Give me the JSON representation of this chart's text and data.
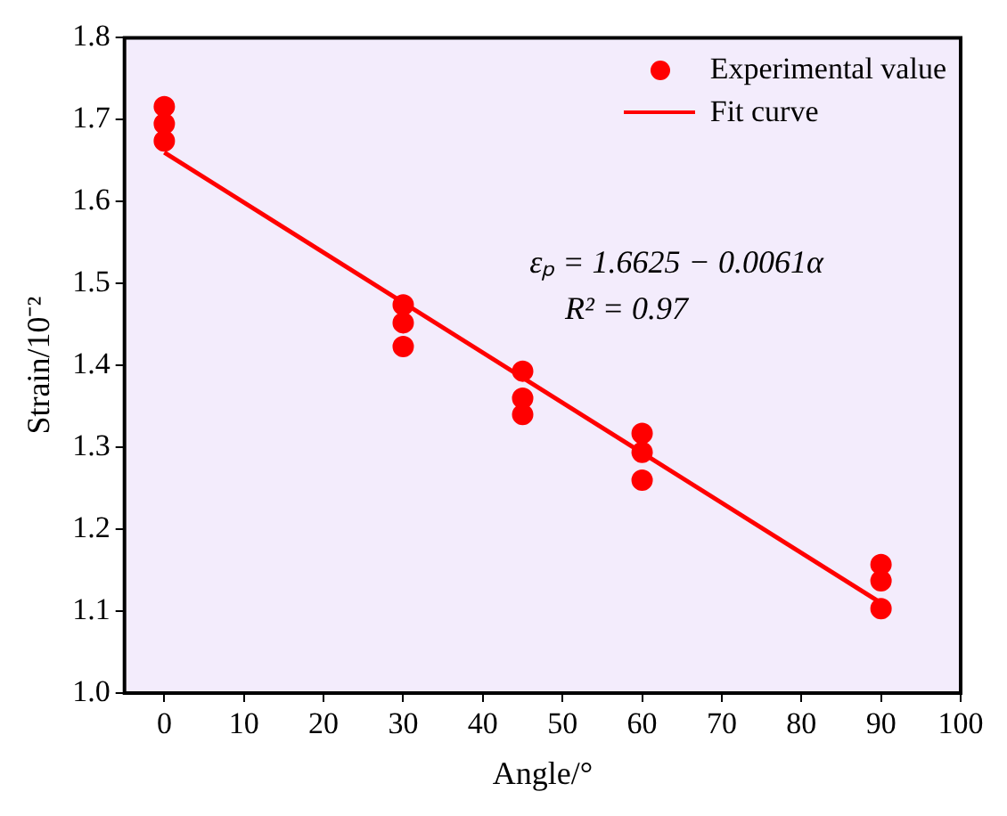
{
  "chart_data": {
    "type": "scatter",
    "xlabel": "Angle/°",
    "ylabel": "Strain/10⁻²",
    "xlim": [
      -5,
      100
    ],
    "xticks": [
      0,
      10,
      20,
      30,
      40,
      50,
      60,
      70,
      80,
      90,
      100
    ],
    "ylim": [
      1.0,
      1.8
    ],
    "yticks": [
      {
        "value": 1,
        "label": "1.0"
      },
      1.1,
      1.2,
      1.3,
      1.4,
      1.5,
      1.6,
      1.7,
      1.8
    ],
    "series": [
      {
        "name": "Experimental value",
        "type": "scatter",
        "color": "#ff0000",
        "marker": "circle",
        "x": [
          0,
          0,
          0,
          30,
          30,
          30,
          45,
          45,
          45,
          60,
          60,
          60,
          90,
          90,
          90
        ],
        "values": [
          1.716,
          1.695,
          1.674,
          1.474,
          1.452,
          1.423,
          1.393,
          1.36,
          1.34,
          1.317,
          1.294,
          1.26,
          1.157,
          1.137,
          1.103
        ]
      },
      {
        "name": "Fit curve",
        "type": "line",
        "color": "#ff0000",
        "line_style": "solid",
        "marker": "none",
        "x": [
          0,
          90
        ],
        "values": [
          1.66,
          1.11
        ]
      }
    ],
    "annotations": [
      "εₚ = 1.6625 − 0.0061α",
      "R² = 0.97"
    ],
    "grid": false,
    "legend": "top right"
  }
}
